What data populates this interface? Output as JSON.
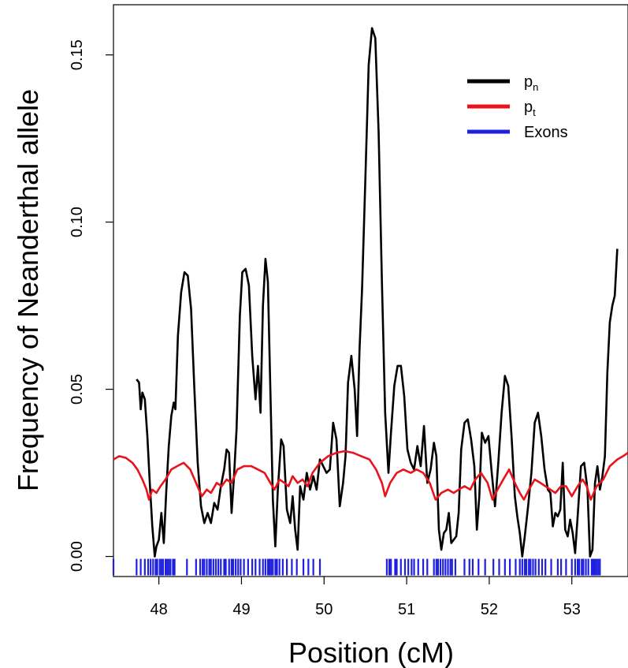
{
  "chart_data": {
    "type": "line",
    "xlabel": "Position (cM)",
    "ylabel": "Frequency of Neanderthal allele",
    "xlim": [
      47.45,
      53.68
    ],
    "ylim": [
      -0.006,
      0.165
    ],
    "x_ticks": [
      48,
      49,
      50,
      51,
      52,
      53
    ],
    "x_tick_labels": [
      "48",
      "49",
      "50",
      "51",
      "52",
      "53"
    ],
    "y_ticks": [
      0.0,
      0.05,
      0.1,
      0.15
    ],
    "y_tick_labels": [
      "0.00",
      "0.05",
      "0.10",
      "0.15"
    ],
    "grid": false,
    "legend_position": "top-right",
    "legend": [
      {
        "base": "p",
        "sub": "n",
        "color": "#000000"
      },
      {
        "base": "p",
        "sub": "t",
        "color": "#e8141b"
      },
      {
        "base": "Exons",
        "sub": "",
        "color": "#1f1fe0"
      }
    ],
    "series": [
      {
        "key": "pn",
        "color": "#000000",
        "points": [
          [
            47.73,
            0.053
          ],
          [
            47.76,
            0.052
          ],
          [
            47.78,
            0.044
          ],
          [
            47.8,
            0.049
          ],
          [
            47.83,
            0.047
          ],
          [
            47.86,
            0.036
          ],
          [
            47.89,
            0.022
          ],
          [
            47.92,
            0.009
          ],
          [
            47.95,
            0.0
          ],
          [
            47.97,
            0.003
          ],
          [
            48.0,
            0.005
          ],
          [
            48.03,
            0.013
          ],
          [
            48.06,
            0.004
          ],
          [
            48.09,
            0.02
          ],
          [
            48.12,
            0.033
          ],
          [
            48.15,
            0.042
          ],
          [
            48.18,
            0.046
          ],
          [
            48.2,
            0.044
          ],
          [
            48.23,
            0.066
          ],
          [
            48.27,
            0.079
          ],
          [
            48.31,
            0.085
          ],
          [
            48.35,
            0.084
          ],
          [
            48.39,
            0.074
          ],
          [
            48.43,
            0.05
          ],
          [
            48.47,
            0.028
          ],
          [
            48.51,
            0.015
          ],
          [
            48.55,
            0.01
          ],
          [
            48.59,
            0.013
          ],
          [
            48.63,
            0.01
          ],
          [
            48.67,
            0.016
          ],
          [
            48.71,
            0.014
          ],
          [
            48.75,
            0.021
          ],
          [
            48.79,
            0.026
          ],
          [
            48.82,
            0.032
          ],
          [
            48.85,
            0.031
          ],
          [
            48.88,
            0.013
          ],
          [
            48.91,
            0.024
          ],
          [
            48.94,
            0.038
          ],
          [
            48.98,
            0.072
          ],
          [
            49.01,
            0.085
          ],
          [
            49.05,
            0.086
          ],
          [
            49.09,
            0.081
          ],
          [
            49.13,
            0.06
          ],
          [
            49.17,
            0.047
          ],
          [
            49.2,
            0.057
          ],
          [
            49.23,
            0.043
          ],
          [
            49.26,
            0.075
          ],
          [
            49.29,
            0.089
          ],
          [
            49.32,
            0.082
          ],
          [
            49.35,
            0.05
          ],
          [
            49.38,
            0.017
          ],
          [
            49.41,
            0.003
          ],
          [
            49.44,
            0.02
          ],
          [
            49.48,
            0.035
          ],
          [
            49.51,
            0.033
          ],
          [
            49.55,
            0.014
          ],
          [
            49.59,
            0.01
          ],
          [
            49.62,
            0.018
          ],
          [
            49.65,
            0.008
          ],
          [
            49.68,
            0.002
          ],
          [
            49.71,
            0.021
          ],
          [
            49.75,
            0.017
          ],
          [
            49.79,
            0.025
          ],
          [
            49.83,
            0.02
          ],
          [
            49.87,
            0.024
          ],
          [
            49.91,
            0.02
          ],
          [
            49.95,
            0.029
          ],
          [
            49.99,
            0.027
          ],
          [
            50.03,
            0.025
          ],
          [
            50.07,
            0.026
          ],
          [
            50.11,
            0.04
          ],
          [
            50.15,
            0.035
          ],
          [
            50.19,
            0.015
          ],
          [
            50.23,
            0.022
          ],
          [
            50.26,
            0.03
          ],
          [
            50.29,
            0.052
          ],
          [
            50.33,
            0.06
          ],
          [
            50.37,
            0.05
          ],
          [
            50.4,
            0.036
          ],
          [
            50.43,
            0.062
          ],
          [
            50.46,
            0.08
          ],
          [
            50.5,
            0.113
          ],
          [
            50.54,
            0.147
          ],
          [
            50.58,
            0.158
          ],
          [
            50.62,
            0.155
          ],
          [
            50.66,
            0.127
          ],
          [
            50.7,
            0.082
          ],
          [
            50.74,
            0.043
          ],
          [
            50.78,
            0.025
          ],
          [
            50.81,
            0.037
          ],
          [
            50.85,
            0.051
          ],
          [
            50.89,
            0.057
          ],
          [
            50.93,
            0.057
          ],
          [
            50.97,
            0.048
          ],
          [
            51.01,
            0.032
          ],
          [
            51.05,
            0.028
          ],
          [
            51.09,
            0.026
          ],
          [
            51.13,
            0.033
          ],
          [
            51.17,
            0.027
          ],
          [
            51.21,
            0.039
          ],
          [
            51.25,
            0.022
          ],
          [
            51.29,
            0.026
          ],
          [
            51.33,
            0.034
          ],
          [
            51.36,
            0.03
          ],
          [
            51.39,
            0.008
          ],
          [
            51.42,
            0.002
          ],
          [
            51.45,
            0.007
          ],
          [
            51.48,
            0.008
          ],
          [
            51.51,
            0.013
          ],
          [
            51.54,
            0.004
          ],
          [
            51.57,
            0.005
          ],
          [
            51.6,
            0.006
          ],
          [
            51.63,
            0.013
          ],
          [
            51.66,
            0.032
          ],
          [
            51.7,
            0.04
          ],
          [
            51.74,
            0.041
          ],
          [
            51.78,
            0.035
          ],
          [
            51.82,
            0.027
          ],
          [
            51.85,
            0.008
          ],
          [
            51.88,
            0.018
          ],
          [
            51.91,
            0.037
          ],
          [
            51.95,
            0.034
          ],
          [
            51.99,
            0.036
          ],
          [
            52.03,
            0.025
          ],
          [
            52.07,
            0.015
          ],
          [
            52.11,
            0.028
          ],
          [
            52.15,
            0.043
          ],
          [
            52.19,
            0.054
          ],
          [
            52.23,
            0.051
          ],
          [
            52.27,
            0.036
          ],
          [
            52.31,
            0.018
          ],
          [
            52.34,
            0.012
          ],
          [
            52.37,
            0.007
          ],
          [
            52.4,
            0.0
          ],
          [
            52.43,
            0.006
          ],
          [
            52.47,
            0.015
          ],
          [
            52.51,
            0.025
          ],
          [
            52.55,
            0.04
          ],
          [
            52.59,
            0.043
          ],
          [
            52.63,
            0.036
          ],
          [
            52.67,
            0.026
          ],
          [
            52.71,
            0.02
          ],
          [
            52.74,
            0.019
          ],
          [
            52.77,
            0.009
          ],
          [
            52.8,
            0.013
          ],
          [
            52.83,
            0.012
          ],
          [
            52.86,
            0.014
          ],
          [
            52.89,
            0.028
          ],
          [
            52.92,
            0.008
          ],
          [
            52.95,
            0.006
          ],
          [
            52.98,
            0.011
          ],
          [
            53.01,
            0.007
          ],
          [
            53.04,
            0.001
          ],
          [
            53.07,
            0.012
          ],
          [
            53.11,
            0.027
          ],
          [
            53.15,
            0.028
          ],
          [
            53.19,
            0.02
          ],
          [
            53.22,
            0.0
          ],
          [
            53.25,
            0.002
          ],
          [
            53.28,
            0.022
          ],
          [
            53.31,
            0.027
          ],
          [
            53.34,
            0.02
          ],
          [
            53.37,
            0.024
          ],
          [
            53.4,
            0.03
          ],
          [
            53.43,
            0.055
          ],
          [
            53.46,
            0.07
          ],
          [
            53.49,
            0.075
          ],
          [
            53.52,
            0.078
          ],
          [
            53.55,
            0.092
          ]
        ]
      },
      {
        "key": "pt",
        "color": "#e8141b",
        "points": [
          [
            47.45,
            0.029
          ],
          [
            47.52,
            0.03
          ],
          [
            47.6,
            0.0295
          ],
          [
            47.68,
            0.028
          ],
          [
            47.74,
            0.026
          ],
          [
            47.8,
            0.023
          ],
          [
            47.85,
            0.02
          ],
          [
            47.88,
            0.017
          ],
          [
            47.92,
            0.02
          ],
          [
            47.97,
            0.019
          ],
          [
            48.02,
            0.021
          ],
          [
            48.08,
            0.023
          ],
          [
            48.15,
            0.026
          ],
          [
            48.22,
            0.027
          ],
          [
            48.3,
            0.028
          ],
          [
            48.38,
            0.026
          ],
          [
            48.45,
            0.022
          ],
          [
            48.52,
            0.018
          ],
          [
            48.58,
            0.02
          ],
          [
            48.63,
            0.019
          ],
          [
            48.7,
            0.022
          ],
          [
            48.76,
            0.021
          ],
          [
            48.82,
            0.023
          ],
          [
            48.88,
            0.022
          ],
          [
            48.95,
            0.026
          ],
          [
            49.03,
            0.027
          ],
          [
            49.12,
            0.027
          ],
          [
            49.2,
            0.026
          ],
          [
            49.28,
            0.025
          ],
          [
            49.35,
            0.022
          ],
          [
            49.4,
            0.02
          ],
          [
            49.46,
            0.023
          ],
          [
            49.52,
            0.022
          ],
          [
            49.57,
            0.021
          ],
          [
            49.62,
            0.024
          ],
          [
            49.68,
            0.022
          ],
          [
            49.74,
            0.023
          ],
          [
            49.8,
            0.021
          ],
          [
            49.86,
            0.025
          ],
          [
            49.95,
            0.028
          ],
          [
            50.05,
            0.03
          ],
          [
            50.15,
            0.031
          ],
          [
            50.25,
            0.0315
          ],
          [
            50.35,
            0.031
          ],
          [
            50.45,
            0.03
          ],
          [
            50.55,
            0.029
          ],
          [
            50.63,
            0.026
          ],
          [
            50.7,
            0.022
          ],
          [
            50.74,
            0.018
          ],
          [
            50.8,
            0.022
          ],
          [
            50.88,
            0.025
          ],
          [
            50.96,
            0.026
          ],
          [
            51.05,
            0.025
          ],
          [
            51.12,
            0.026
          ],
          [
            51.2,
            0.025
          ],
          [
            51.28,
            0.022
          ],
          [
            51.35,
            0.017
          ],
          [
            51.42,
            0.019
          ],
          [
            51.5,
            0.02
          ],
          [
            51.57,
            0.019
          ],
          [
            51.63,
            0.02
          ],
          [
            51.7,
            0.021
          ],
          [
            51.77,
            0.02
          ],
          [
            51.83,
            0.023
          ],
          [
            51.9,
            0.025
          ],
          [
            51.98,
            0.022
          ],
          [
            52.04,
            0.017
          ],
          [
            52.1,
            0.02
          ],
          [
            52.17,
            0.023
          ],
          [
            52.24,
            0.026
          ],
          [
            52.31,
            0.022
          ],
          [
            52.37,
            0.019
          ],
          [
            52.42,
            0.017
          ],
          [
            52.48,
            0.02
          ],
          [
            52.55,
            0.023
          ],
          [
            52.62,
            0.022
          ],
          [
            52.68,
            0.021
          ],
          [
            52.74,
            0.02
          ],
          [
            52.8,
            0.019
          ],
          [
            52.87,
            0.021
          ],
          [
            52.93,
            0.021
          ],
          [
            53.0,
            0.018
          ],
          [
            53.07,
            0.021
          ],
          [
            53.13,
            0.023
          ],
          [
            53.18,
            0.021
          ],
          [
            53.23,
            0.017
          ],
          [
            53.3,
            0.021
          ],
          [
            53.38,
            0.023
          ],
          [
            53.46,
            0.027
          ],
          [
            53.55,
            0.029
          ],
          [
            53.62,
            0.03
          ],
          [
            53.68,
            0.031
          ]
        ]
      }
    ],
    "exons": {
      "color": "#1f1fe0",
      "positions": [
        47.45,
        47.73,
        47.78,
        47.83,
        47.87,
        47.9,
        47.93,
        47.96,
        47.98,
        48.01,
        48.03,
        48.05,
        48.08,
        48.1,
        48.12,
        48.14,
        48.17,
        48.19,
        48.34,
        48.45,
        48.5,
        48.53,
        48.55,
        48.58,
        48.61,
        48.63,
        48.66,
        48.69,
        48.72,
        48.75,
        48.79,
        48.81,
        48.85,
        48.88,
        48.9,
        48.93,
        48.96,
        48.99,
        49.03,
        49.08,
        49.13,
        49.17,
        49.22,
        49.26,
        49.29,
        49.32,
        49.34,
        49.36,
        49.38,
        49.41,
        49.43,
        49.46,
        49.5,
        49.55,
        49.61,
        49.67,
        49.75,
        49.81,
        49.87,
        49.95,
        50.76,
        50.79,
        50.81,
        50.86,
        50.88,
        50.93,
        50.98,
        51.02,
        51.06,
        51.09,
        51.14,
        51.2,
        51.25,
        51.33,
        51.36,
        51.38,
        51.41,
        51.44,
        51.47,
        51.5,
        51.53,
        51.55,
        51.59,
        51.7,
        51.76,
        51.8,
        51.87,
        51.95,
        52.05,
        52.12,
        52.19,
        52.25,
        52.32,
        52.37,
        52.4,
        52.43,
        52.45,
        52.48,
        52.5,
        52.53,
        52.56,
        52.6,
        52.64,
        52.68,
        52.75,
        52.83,
        52.87,
        52.93,
        53.0,
        53.04,
        53.07,
        53.09,
        53.12,
        53.14,
        53.17,
        53.2,
        53.24,
        53.26,
        53.28,
        53.3,
        53.32,
        53.34
      ]
    }
  }
}
